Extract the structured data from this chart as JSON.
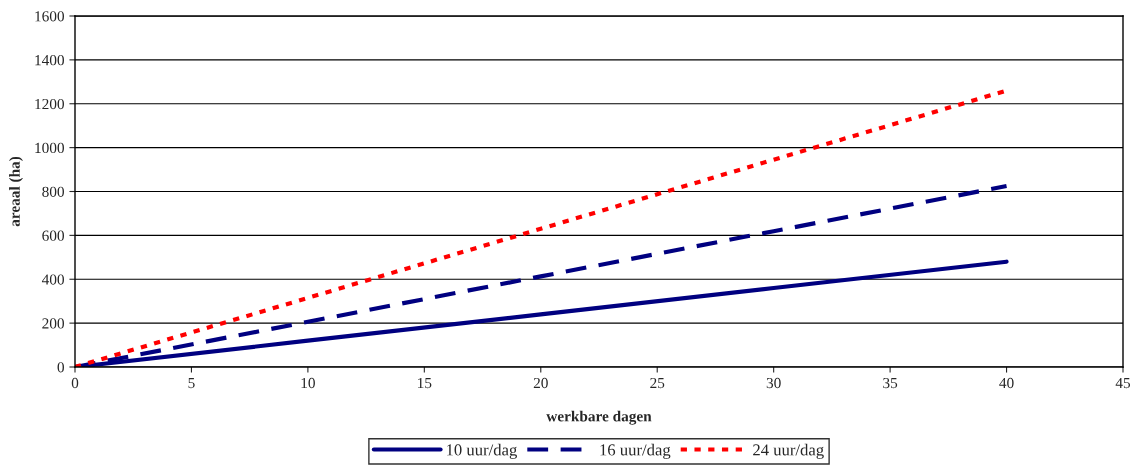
{
  "chart_data": {
    "type": "line",
    "xlabel": "werkbare dagen",
    "ylabel": "areaal (ha)",
    "x": [
      0,
      10,
      20,
      30,
      40
    ],
    "series": [
      {
        "name": "10 uur/dag",
        "color": "#000080",
        "values": [
          0,
          120,
          240,
          360,
          480
        ],
        "line_style": "solid"
      },
      {
        "name": "16 uur/dag",
        "color": "#000080",
        "values": [
          0,
          206,
          413,
          619,
          825
        ],
        "line_style": "dashed"
      },
      {
        "name": "24 uur/dag",
        "color": "#ff0000",
        "values": [
          0,
          315,
          630,
          945,
          1260
        ],
        "line_style": "dotted"
      }
    ],
    "xlim": [
      0,
      45
    ],
    "xticks": [
      0,
      5,
      10,
      15,
      20,
      25,
      30,
      35,
      40,
      45
    ],
    "ylim": [
      0,
      1600
    ],
    "yticks": [
      0,
      200,
      400,
      600,
      800,
      1000,
      1200,
      1400,
      1600
    ],
    "grid": "y",
    "legend": "bottom",
    "marker": "none"
  }
}
